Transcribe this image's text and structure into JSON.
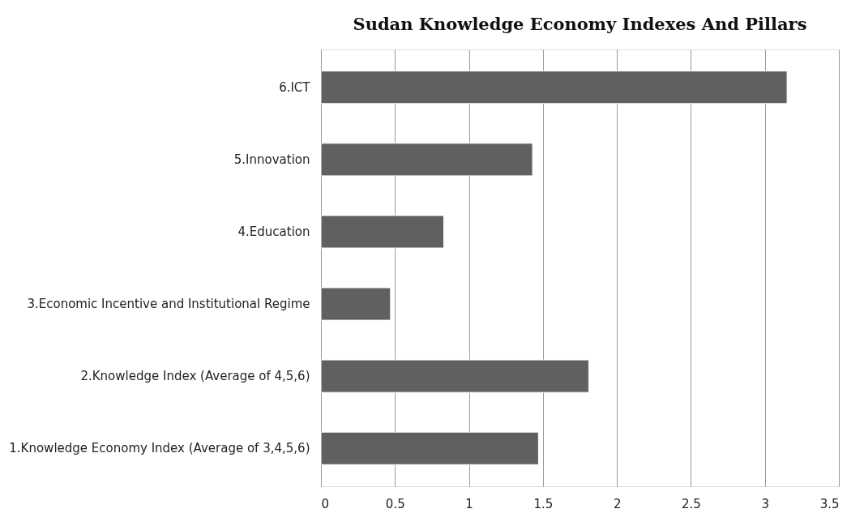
{
  "chart_data": {
    "type": "bar",
    "orientation": "horizontal",
    "title": "Sudan Knowledge Economy Indexes And Pillars",
    "categories": [
      "6.ICT",
      "5.Innovation",
      "4.Education",
      "3.Economic Incentive and Institutional Regime",
      "2.Knowledge Index (Average of 4,5,6)",
      "1.Knowledge Economy Index (Average of 3,4,5,6)"
    ],
    "values": [
      3.15,
      1.43,
      0.83,
      0.47,
      1.81,
      1.47
    ],
    "color": "#606060",
    "xlim": [
      0,
      3.5
    ],
    "xticks": [
      0,
      0.5,
      1,
      1.5,
      2,
      2.5,
      3,
      3.5
    ],
    "grid": "x"
  }
}
